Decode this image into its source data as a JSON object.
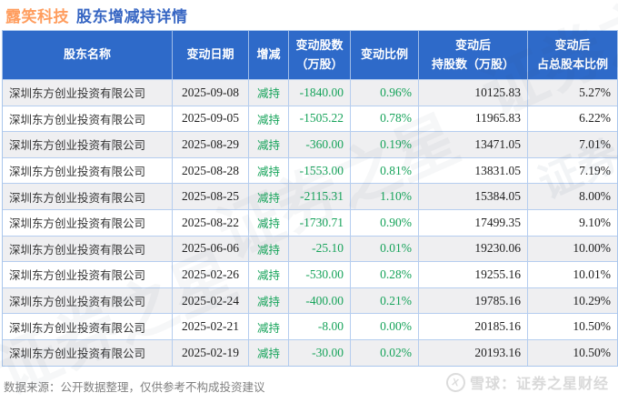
{
  "title": {
    "stock": "露笑科技",
    "label": "股东增减持详情"
  },
  "colors": {
    "header_bg": "#2e6ac9",
    "green": "#16a35a",
    "title_orange": "#ff9d5e",
    "title_blue": "#3766c3",
    "stripe": "#efeff1",
    "cell_border": "#b5cdef"
  },
  "watermark_text": "证券之星",
  "watermark_side_text": "证券",
  "table": {
    "headers": [
      {
        "lines": [
          "股东名称"
        ]
      },
      {
        "lines": [
          "变动日期"
        ]
      },
      {
        "lines": [
          "增减"
        ]
      },
      {
        "lines": [
          "变动股数",
          "（万股）"
        ]
      },
      {
        "lines": [
          "变动比例"
        ]
      },
      {
        "lines": [
          "变动后",
          "持股数（万股）"
        ]
      },
      {
        "lines": [
          "变动后",
          "占总股本比例"
        ]
      }
    ],
    "columns": [
      "name",
      "date",
      "action",
      "change_shares",
      "change_ratio",
      "shares_after",
      "ratio_after"
    ],
    "rows": [
      {
        "name": "深圳东方创业投资有限公司",
        "date": "2025-09-08",
        "action": "减持",
        "change_shares": "-1840.00",
        "change_ratio": "0.96%",
        "shares_after": "10125.83",
        "ratio_after": "5.27%"
      },
      {
        "name": "深圳东方创业投资有限公司",
        "date": "2025-09-05",
        "action": "减持",
        "change_shares": "-1505.22",
        "change_ratio": "0.78%",
        "shares_after": "11965.83",
        "ratio_after": "6.22%"
      },
      {
        "name": "深圳东方创业投资有限公司",
        "date": "2025-08-29",
        "action": "减持",
        "change_shares": "-360.00",
        "change_ratio": "0.19%",
        "shares_after": "13471.05",
        "ratio_after": "7.01%"
      },
      {
        "name": "深圳东方创业投资有限公司",
        "date": "2025-08-28",
        "action": "减持",
        "change_shares": "-1553.00",
        "change_ratio": "0.81%",
        "shares_after": "13831.05",
        "ratio_after": "7.19%"
      },
      {
        "name": "深圳东方创业投资有限公司",
        "date": "2025-08-25",
        "action": "减持",
        "change_shares": "-2115.31",
        "change_ratio": "1.10%",
        "shares_after": "15384.05",
        "ratio_after": "8.00%"
      },
      {
        "name": "深圳东方创业投资有限公司",
        "date": "2025-08-22",
        "action": "减持",
        "change_shares": "-1730.71",
        "change_ratio": "0.90%",
        "shares_after": "17499.35",
        "ratio_after": "9.10%"
      },
      {
        "name": "深圳东方创业投资有限公司",
        "date": "2025-06-06",
        "action": "减持",
        "change_shares": "-25.10",
        "change_ratio": "0.01%",
        "shares_after": "19230.06",
        "ratio_after": "10.00%"
      },
      {
        "name": "深圳东方创业投资有限公司",
        "date": "2025-02-26",
        "action": "减持",
        "change_shares": "-530.00",
        "change_ratio": "0.28%",
        "shares_after": "19255.16",
        "ratio_after": "10.01%"
      },
      {
        "name": "深圳东方创业投资有限公司",
        "date": "2025-02-24",
        "action": "减持",
        "change_shares": "-400.00",
        "change_ratio": "0.21%",
        "shares_after": "19785.16",
        "ratio_after": "10.29%"
      },
      {
        "name": "深圳东方创业投资有限公司",
        "date": "2025-02-21",
        "action": "减持",
        "change_shares": "-8.00",
        "change_ratio": "0.00%",
        "shares_after": "20185.16",
        "ratio_after": "10.50%"
      },
      {
        "name": "深圳东方创业投资有限公司",
        "date": "2025-02-19",
        "action": "减持",
        "change_shares": "-30.00",
        "change_ratio": "0.02%",
        "shares_after": "20193.16",
        "ratio_after": "10.50%"
      }
    ]
  },
  "footer": {
    "disclaimer": "数据来源：公开数据整理，仅供参考不构成投资建议",
    "brand": "雪球：证券之星财经",
    "brand_icon_glyph": "X"
  }
}
